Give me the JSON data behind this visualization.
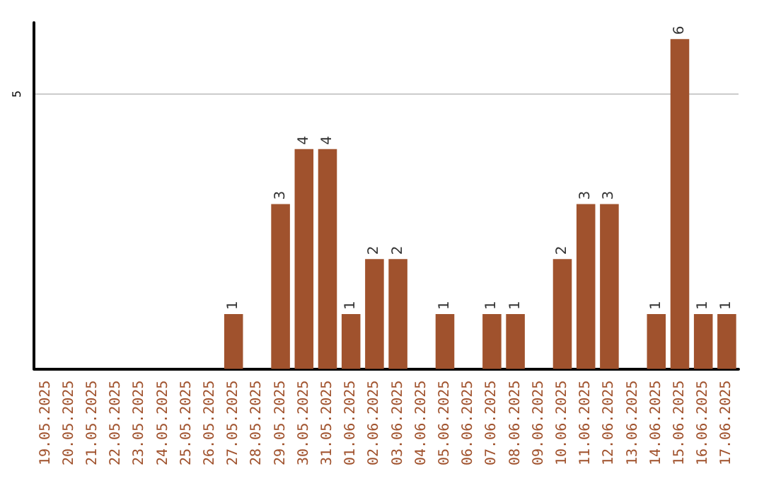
{
  "chart_data": {
    "type": "bar",
    "categories": [
      "19.05.2025",
      "20.05.2025",
      "21.05.2025",
      "22.05.2025",
      "23.05.2025",
      "24.05.2025",
      "25.05.2025",
      "26.05.2025",
      "27.05.2025",
      "28.05.2025",
      "29.05.2025",
      "30.05.2025",
      "31.05.2025",
      "01.06.2025",
      "02.06.2025",
      "03.06.2025",
      "04.06.2025",
      "05.06.2025",
      "06.06.2025",
      "07.06.2025",
      "08.06.2025",
      "09.06.2025",
      "10.06.2025",
      "11.06.2025",
      "12.06.2025",
      "13.06.2025",
      "14.06.2025",
      "15.06.2025",
      "16.06.2025",
      "17.06.2025"
    ],
    "values": [
      0,
      0,
      0,
      0,
      0,
      0,
      0,
      0,
      1,
      0,
      3,
      4,
      4,
      1,
      2,
      2,
      0,
      1,
      0,
      1,
      1,
      0,
      2,
      3,
      3,
      0,
      1,
      6,
      1,
      1
    ],
    "value_labels": [
      null,
      null,
      null,
      null,
      null,
      null,
      null,
      null,
      "1",
      null,
      "3",
      "4",
      "4",
      "1",
      "2",
      "2",
      null,
      "1",
      null,
      "1",
      "1",
      null,
      "2",
      "3",
      "3",
      null,
      "1",
      "6",
      "1",
      "1"
    ],
    "color": "#a0522d",
    "ylim": [
      0,
      6.3
    ],
    "yticks": [
      {
        "value": 0,
        "label": null
      },
      5
    ],
    "grid": "y"
  }
}
